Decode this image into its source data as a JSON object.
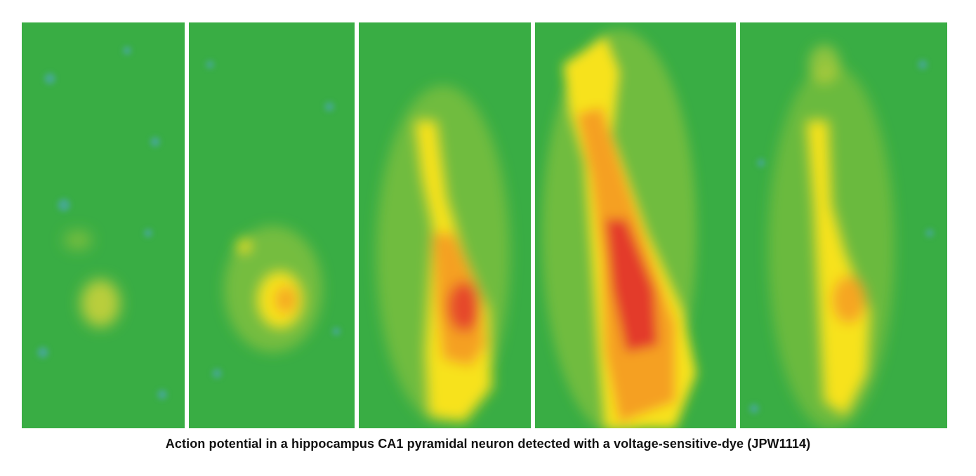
{
  "figure": {
    "panels_count": 5,
    "colors": {
      "background_green": "#3aae45",
      "yellow": "#f7e21a",
      "orange": "#f5a022",
      "red": "#e33b2c",
      "blue_speckle": "#4fa7c8"
    },
    "panels": [
      {
        "label": "panel-1",
        "signal_level": "low"
      },
      {
        "label": "panel-2",
        "signal_level": "medium"
      },
      {
        "label": "panel-3",
        "signal_level": "high"
      },
      {
        "label": "panel-4",
        "signal_level": "peak"
      },
      {
        "label": "panel-5",
        "signal_level": "decay"
      }
    ]
  },
  "caption": "Action potential in a hippocampus CA1 pyramidal neuron detected with a voltage-sensitive-dye (JPW1114)"
}
